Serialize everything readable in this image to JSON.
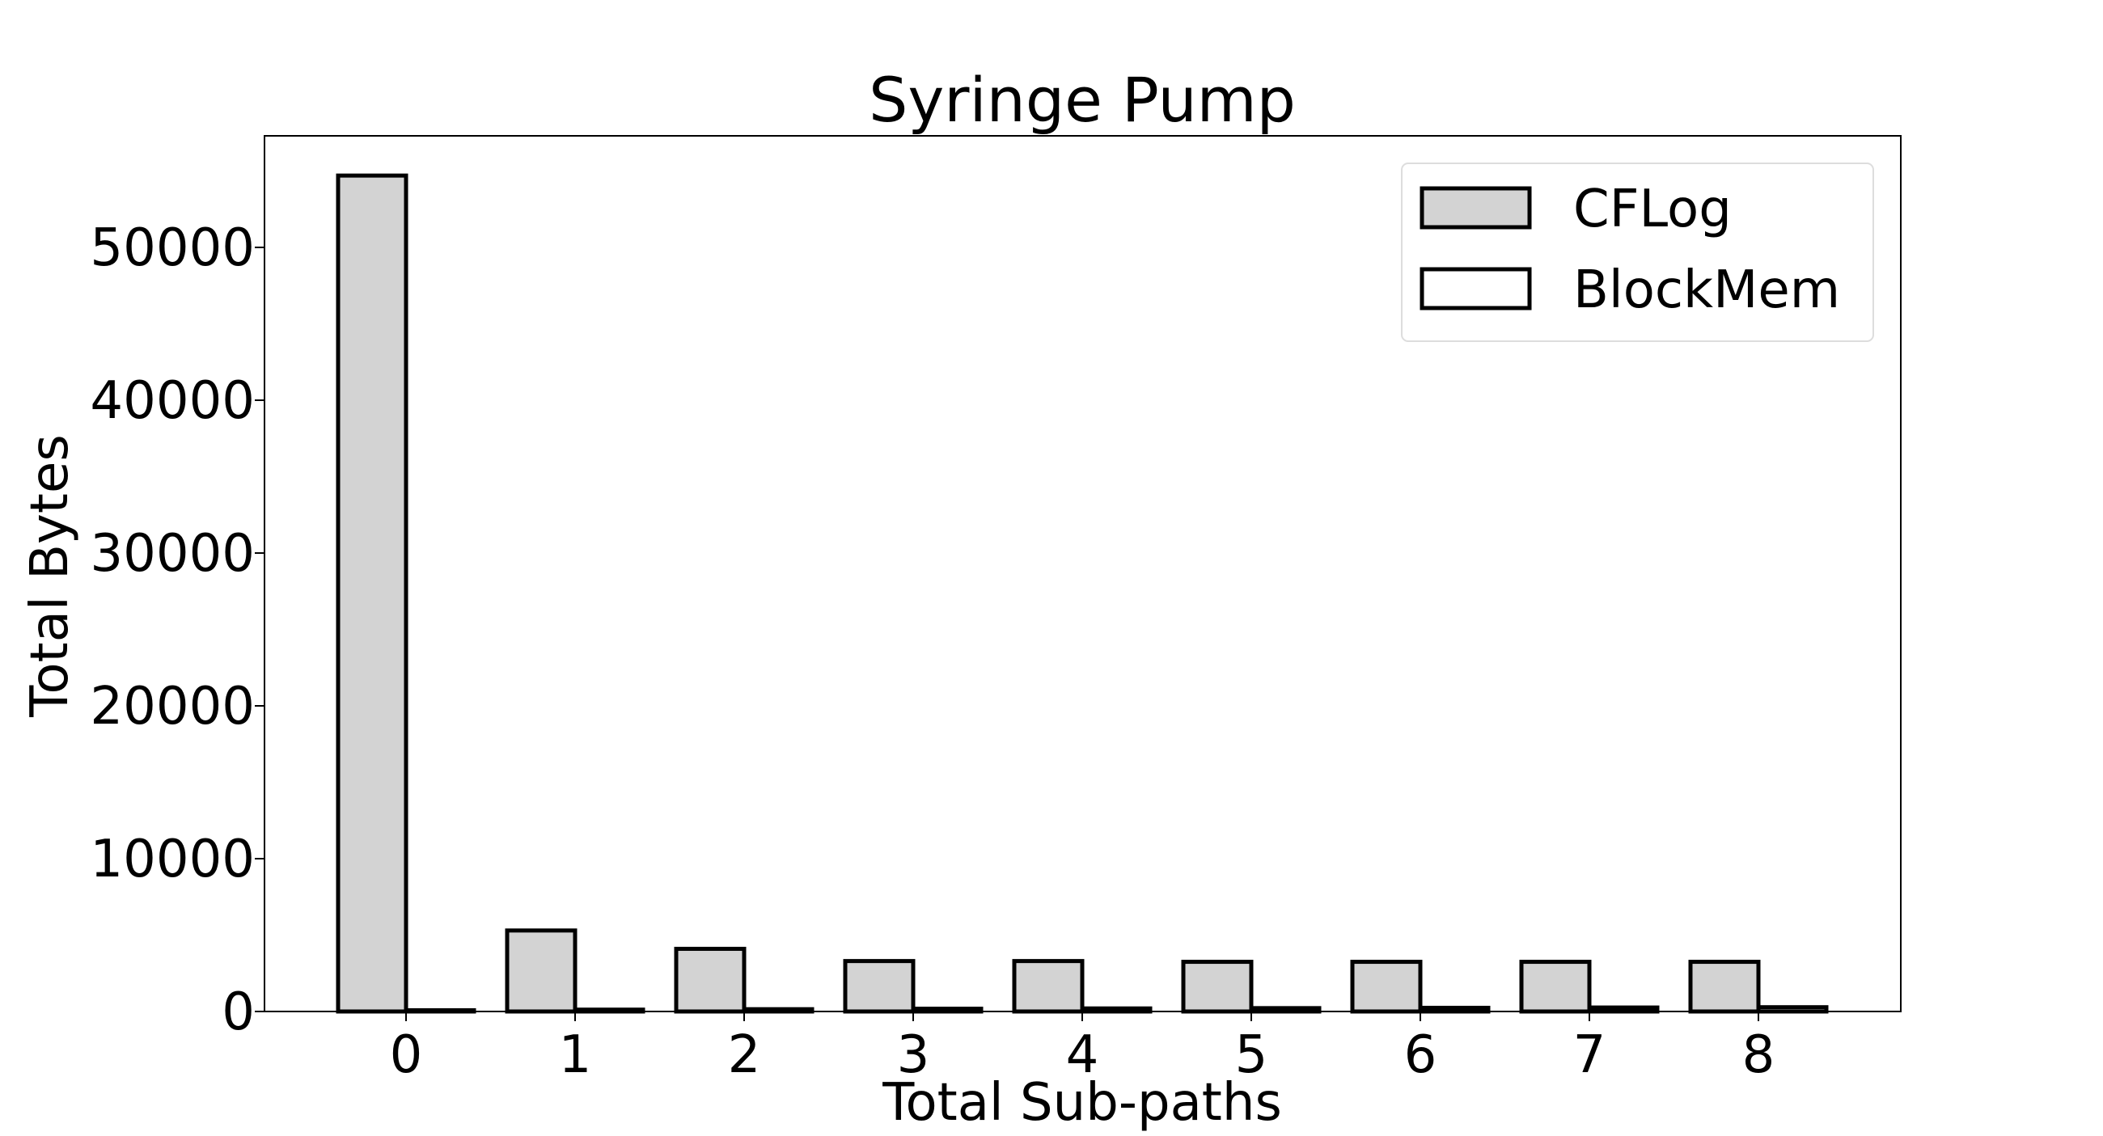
{
  "chart_data": {
    "type": "bar",
    "title": "Syringe Pump",
    "xlabel": "Total Sub-paths",
    "ylabel": "Total Bytes",
    "categories": [
      "0",
      "1",
      "2",
      "3",
      "4",
      "5",
      "6",
      "7",
      "8"
    ],
    "series": [
      {
        "name": "CFLog",
        "values": [
          54700,
          5300,
          4100,
          3300,
          3300,
          3250,
          3250,
          3250,
          3250
        ],
        "fill": "#d3d3d3"
      },
      {
        "name": "BlockMem",
        "values": [
          80,
          120,
          150,
          180,
          200,
          220,
          240,
          260,
          280
        ],
        "fill": "#ffffff"
      }
    ],
    "yticks": [
      0,
      10000,
      20000,
      30000,
      40000,
      50000
    ],
    "ylim": [
      0,
      57300
    ],
    "legend_position": "top-right",
    "grid": false
  }
}
